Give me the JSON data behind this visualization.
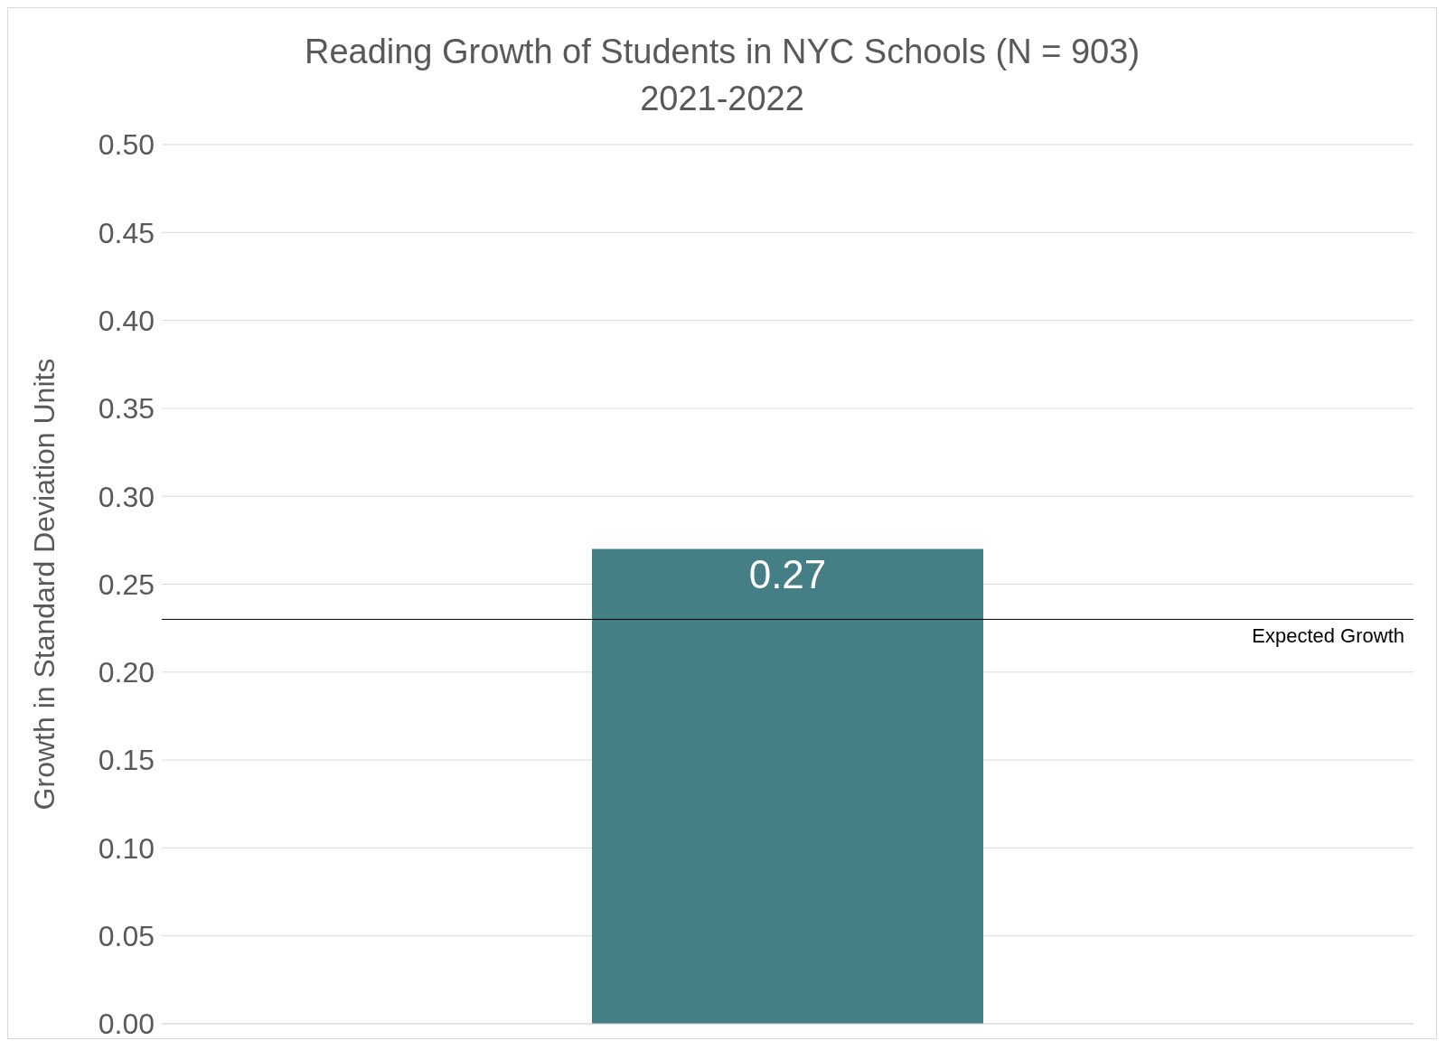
{
  "chart_data": {
    "type": "bar",
    "title": "Reading Growth of Students in NYC Schools (N = 903)",
    "subtitle": "2021-2022",
    "ylabel": "Growth in Standard Deviation Units",
    "categories": [
      null
    ],
    "values": [
      0.27
    ],
    "color": "#447f86",
    "data_labels": true,
    "ylim": [
      0,
      0.5
    ],
    "yticks": [
      {
        "value": 0,
        "label": "0.00"
      },
      {
        "value": 0.05,
        "label": "0.05"
      },
      {
        "value": 0.1,
        "label": "0.10"
      },
      {
        "value": 0.15,
        "label": "0.15"
      },
      {
        "value": 0.2,
        "label": "0.20"
      },
      {
        "value": 0.25,
        "label": "0.25"
      },
      {
        "value": 0.3,
        "label": "0.30"
      },
      {
        "value": 0.35,
        "label": "0.35"
      },
      {
        "value": 0.4,
        "label": "0.40"
      },
      {
        "value": 0.45,
        "label": "0.45"
      },
      {
        "value": 0.5,
        "label": "0.50"
      }
    ],
    "grid": "y",
    "tick_labels": "y",
    "ref_lines": [
      {
        "axis": "y",
        "value": 0.23,
        "label": "Expected Growth",
        "color": "#000000"
      }
    ]
  }
}
